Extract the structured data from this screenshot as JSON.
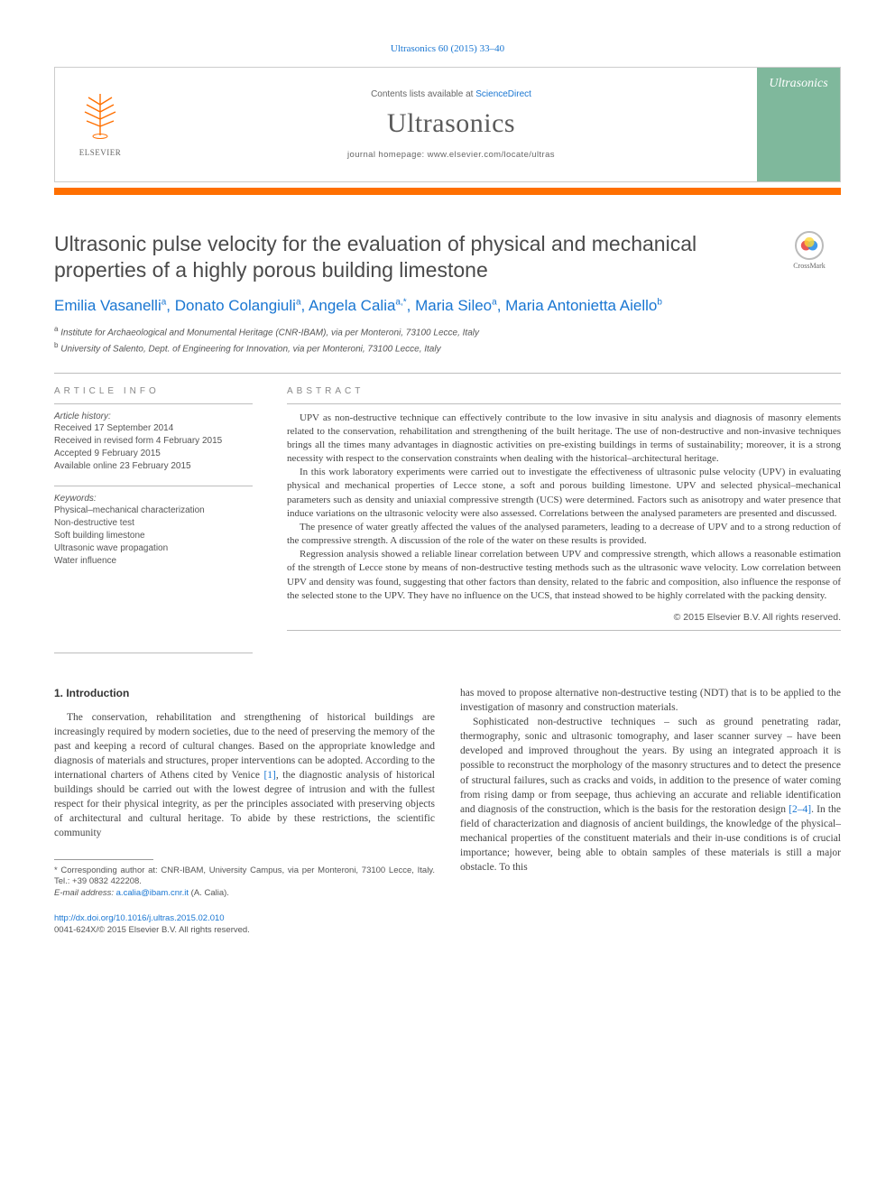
{
  "journal_ref": "Ultrasonics 60 (2015) 33–40",
  "header": {
    "publisher": "ELSEVIER",
    "contents_prefix": "Contents lists available at ",
    "contents_link": "ScienceDirect",
    "journal_name": "Ultrasonics",
    "homepage_line": "journal homepage: www.elsevier.com/locate/ultras",
    "cover_label": "Ultrasonics",
    "orange_bar_color": "#ff6f00",
    "cover_bg_color": "#7fb89c"
  },
  "crossmark_label": "CrossMark",
  "title": "Ultrasonic pulse velocity for the evaluation of physical and mechanical properties of a highly porous building limestone",
  "authors_html": "Emilia Vasanelli<span class='sup'>a</span>, Donato Colangiuli<span class='sup'>a</span>, Angela Calia<span class='sup'>a,*</span>, Maria Sileo<span class='sup'>a</span>, Maria Antonietta Aiello<span class='sup'>b</span>",
  "affiliations": [
    {
      "sup": "a",
      "text": "Institute for Archaeological and Monumental Heritage (CNR-IBAM), via per Monteroni, 73100 Lecce, Italy"
    },
    {
      "sup": "b",
      "text": "University of Salento, Dept. of Engineering for Innovation, via per Monteroni, 73100 Lecce, Italy"
    }
  ],
  "article_info": {
    "heading": "ARTICLE INFO",
    "history_label": "Article history:",
    "history": [
      "Received 17 September 2014",
      "Received in revised form 4 February 2015",
      "Accepted 9 February 2015",
      "Available online 23 February 2015"
    ],
    "keywords_label": "Keywords:",
    "keywords": [
      "Physical–mechanical characterization",
      "Non-destructive test",
      "Soft building limestone",
      "Ultrasonic wave propagation",
      "Water influence"
    ]
  },
  "abstract": {
    "heading": "ABSTRACT",
    "paragraphs": [
      "UPV as non-destructive technique can effectively contribute to the low invasive in situ analysis and diagnosis of masonry elements related to the conservation, rehabilitation and strengthening of the built heritage. The use of non-destructive and non-invasive techniques brings all the times many advantages in diagnostic activities on pre-existing buildings in terms of sustainability; moreover, it is a strong necessity with respect to the conservation constraints when dealing with the historical–architectural heritage.",
      "In this work laboratory experiments were carried out to investigate the effectiveness of ultrasonic pulse velocity (UPV) in evaluating physical and mechanical properties of Lecce stone, a soft and porous building limestone. UPV and selected physical–mechanical parameters such as density and uniaxial compressive strength (UCS) were determined. Factors such as anisotropy and water presence that induce variations on the ultrasonic velocity were also assessed. Correlations between the analysed parameters are presented and discussed.",
      "The presence of water greatly affected the values of the analysed parameters, leading to a decrease of UPV and to a strong reduction of the compressive strength. A discussion of the role of the water on these results is provided.",
      "Regression analysis showed a reliable linear correlation between UPV and compressive strength, which allows a reasonable estimation of the strength of Lecce stone by means of non-destructive testing methods such as the ultrasonic wave velocity. Low correlation between UPV and density was found, suggesting that other factors than density, related to the fabric and composition, also influence the response of the selected stone to the UPV. They have no influence on the UCS, that instead showed to be highly correlated with the packing density."
    ],
    "copyright": "© 2015 Elsevier B.V. All rights reserved."
  },
  "body": {
    "section_heading": "1. Introduction",
    "left_col": "The conservation, rehabilitation and strengthening of historical buildings are increasingly required by modern societies, due to the need of preserving the memory of the past and keeping a record of cultural changes. Based on the appropriate knowledge and diagnosis of materials and structures, proper interventions can be adopted. According to the international charters of Athens cited by Venice <span class='cite-link'>[1]</span>, the diagnostic analysis of historical buildings should be carried out with the lowest degree of intrusion and with the fullest respect for their physical integrity, as per the principles associated with preserving objects of architectural and cultural heritage. To abide by these restrictions, the scientific community",
    "right_col_p1": "has moved to propose alternative non-destructive testing (NDT) that is to be applied to the investigation of masonry and construction materials.",
    "right_col_p2": "Sophisticated non-destructive techniques – such as ground penetrating radar, thermography, sonic and ultrasonic tomography, and laser scanner survey – have been developed and improved throughout the years. By using an integrated approach it is possible to reconstruct the morphology of the masonry structures and to detect the presence of structural failures, such as cracks and voids, in addition to the presence of water coming from rising damp or from seepage, thus achieving an accurate and reliable identification and diagnosis of the construction, which is the basis for the restoration design <span class='cite-link'>[2–4]</span>. In the field of characterization and diagnosis of ancient buildings, the knowledge of the physical–mechanical properties of the constituent materials and their in-use conditions is of crucial importance; however, being able to obtain samples of these materials is still a major obstacle. To this"
  },
  "footnote": {
    "corr": "* Corresponding author at: CNR-IBAM, University Campus, via per Monteroni, 73100 Lecce, Italy. Tel.: +39 0832 422208.",
    "email_label": "E-mail address: ",
    "email": "a.calia@ibam.cnr.it",
    "email_suffix": " (A. Calia)."
  },
  "footer": {
    "doi": "http://dx.doi.org/10.1016/j.ultras.2015.02.010",
    "copyright": "0041-624X/© 2015 Elsevier B.V. All rights reserved."
  },
  "colors": {
    "link": "#1976d2",
    "text": "#444444",
    "rule": "#bdbdbd"
  }
}
